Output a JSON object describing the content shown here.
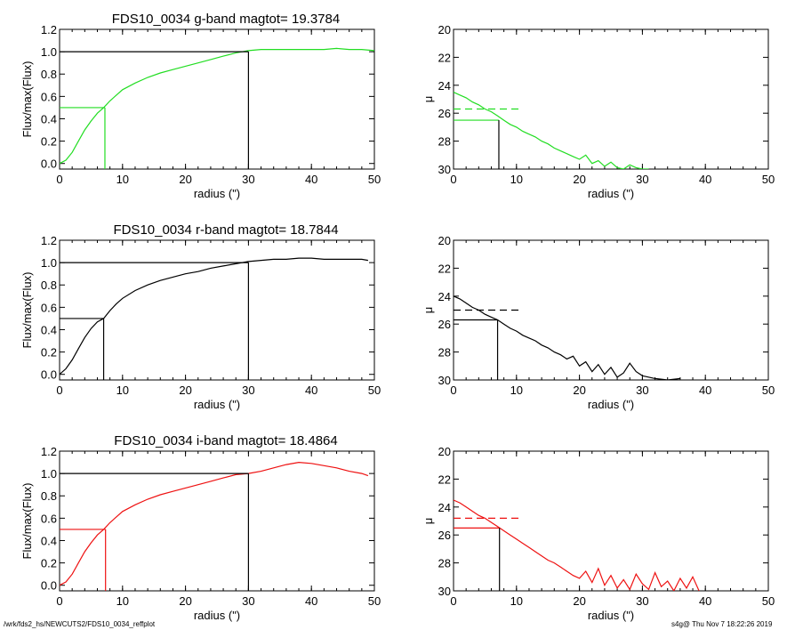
{
  "footer": {
    "left": "/wrk/fds2_hs/NEWCUTS2/FDS10_0034_reffplot",
    "right": "s4g@  Thu Nov  7 18:22:26 2019"
  },
  "colors": {
    "g": "#22dd22",
    "r": "#000000",
    "i": "#ee1111",
    "axis": "#000000"
  },
  "chart_data": [
    {
      "type": "line",
      "band": "g",
      "color": "#22dd22",
      "title": "FDS10_0034 g-band  magtot=      19.3784",
      "xlabel": "radius (\")",
      "ylabel": "Flux/max(Flux)",
      "xlim": [
        0,
        50
      ],
      "ylim": [
        -0.05,
        1.2
      ],
      "xticks": [
        "0",
        "10",
        "20",
        "30",
        "40",
        "50"
      ],
      "yticks": [
        "0.0",
        "0.2",
        "0.4",
        "0.6",
        "0.8",
        "1.0",
        "1.2"
      ],
      "x": [
        0,
        1,
        2,
        3,
        4,
        5,
        6,
        7,
        8,
        9,
        10,
        12,
        14,
        16,
        18,
        20,
        22,
        24,
        26,
        28,
        30,
        32,
        34,
        36,
        38,
        40,
        42,
        44,
        46,
        48,
        50
      ],
      "y": [
        0.0,
        0.03,
        0.1,
        0.2,
        0.3,
        0.38,
        0.45,
        0.5,
        0.56,
        0.61,
        0.66,
        0.72,
        0.77,
        0.81,
        0.84,
        0.87,
        0.9,
        0.93,
        0.96,
        0.99,
        1.01,
        1.02,
        1.02,
        1.02,
        1.02,
        1.02,
        1.02,
        1.03,
        1.02,
        1.02,
        1.01
      ],
      "half_light_radius": 7.2,
      "half_light_level": 0.5,
      "total_radius": 30,
      "total_level": 1.0
    },
    {
      "type": "line",
      "band": "g",
      "color": "#22dd22",
      "xlabel": "radius (\")",
      "ylabel": "μ",
      "xlim": [
        0,
        50
      ],
      "ylim": [
        30,
        20
      ],
      "inverted_y": true,
      "xticks": [
        "0",
        "10",
        "20",
        "30",
        "40",
        "50"
      ],
      "yticks": [
        "20",
        "22",
        "24",
        "26",
        "28",
        "30"
      ],
      "x": [
        0,
        1,
        2,
        3,
        4,
        5,
        6,
        7,
        8,
        9,
        10,
        11,
        12,
        13,
        14,
        15,
        16,
        17,
        18,
        19,
        20,
        21,
        22,
        23,
        24,
        25,
        26,
        27,
        28,
        29,
        30,
        31
      ],
      "y": [
        24.5,
        24.7,
        24.9,
        25.2,
        25.4,
        25.7,
        25.9,
        26.2,
        26.5,
        26.8,
        27.0,
        27.3,
        27.5,
        27.7,
        28.0,
        28.2,
        28.5,
        28.7,
        28.9,
        29.1,
        29.3,
        29.0,
        29.6,
        29.4,
        29.8,
        29.5,
        29.9,
        30.0,
        29.7,
        29.9,
        30.0,
        30.0
      ],
      "mu_mean_level": 25.7,
      "mu_eff_level": 26.5,
      "eff_radius": 7.2
    },
    {
      "type": "line",
      "band": "r",
      "color": "#000000",
      "title": "FDS10_0034 r-band  magtot=      18.7844",
      "xlabel": "radius (\")",
      "ylabel": "Flux/max(Flux)",
      "xlim": [
        0,
        50
      ],
      "ylim": [
        -0.05,
        1.2
      ],
      "xticks": [
        "0",
        "10",
        "20",
        "30",
        "40",
        "50"
      ],
      "yticks": [
        "0.0",
        "0.2",
        "0.4",
        "0.6",
        "0.8",
        "1.0",
        "1.2"
      ],
      "x": [
        0,
        1,
        2,
        3,
        4,
        5,
        6,
        7,
        8,
        9,
        10,
        12,
        14,
        16,
        18,
        20,
        22,
        24,
        26,
        28,
        30,
        32,
        34,
        36,
        38,
        40,
        42,
        44,
        46,
        48,
        49
      ],
      "y": [
        0.0,
        0.05,
        0.13,
        0.23,
        0.33,
        0.41,
        0.47,
        0.5,
        0.57,
        0.63,
        0.68,
        0.75,
        0.8,
        0.84,
        0.87,
        0.9,
        0.92,
        0.95,
        0.97,
        0.99,
        1.01,
        1.02,
        1.03,
        1.03,
        1.04,
        1.04,
        1.03,
        1.03,
        1.03,
        1.03,
        1.02
      ],
      "half_light_radius": 7.0,
      "half_light_level": 0.5,
      "total_radius": 30,
      "total_level": 1.0
    },
    {
      "type": "line",
      "band": "r",
      "color": "#000000",
      "xlabel": "radius (\")",
      "ylabel": "μ",
      "xlim": [
        0,
        50
      ],
      "ylim": [
        30,
        20
      ],
      "inverted_y": true,
      "xticks": [
        "0",
        "10",
        "20",
        "30",
        "40",
        "50"
      ],
      "yticks": [
        "20",
        "22",
        "24",
        "26",
        "28",
        "30"
      ],
      "x": [
        0,
        1,
        2,
        3,
        4,
        5,
        6,
        7,
        8,
        9,
        10,
        11,
        12,
        13,
        14,
        15,
        16,
        17,
        18,
        19,
        20,
        21,
        22,
        23,
        24,
        25,
        26,
        27,
        28,
        29,
        30,
        32,
        34,
        36
      ],
      "y": [
        24.0,
        24.2,
        24.5,
        24.8,
        25.0,
        25.3,
        25.5,
        25.7,
        26.0,
        26.3,
        26.5,
        26.8,
        27.0,
        27.2,
        27.5,
        27.7,
        28.0,
        28.2,
        28.5,
        28.3,
        29.0,
        28.7,
        29.4,
        28.9,
        29.6,
        29.1,
        29.8,
        29.5,
        28.8,
        29.4,
        29.7,
        29.9,
        30.0,
        29.9
      ],
      "mu_mean_level": 25.0,
      "mu_eff_level": 25.7,
      "eff_radius": 7.0
    },
    {
      "type": "line",
      "band": "i",
      "color": "#ee1111",
      "title": "FDS10_0034 i-band  magtot=      18.4864",
      "xlabel": "radius (\")",
      "ylabel": "Flux/max(Flux)",
      "xlim": [
        0,
        50
      ],
      "ylim": [
        -0.05,
        1.2
      ],
      "xticks": [
        "0",
        "10",
        "20",
        "30",
        "40",
        "50"
      ],
      "yticks": [
        "0.0",
        "0.2",
        "0.4",
        "0.6",
        "0.8",
        "1.0",
        "1.2"
      ],
      "x": [
        0,
        1,
        2,
        3,
        4,
        5,
        6,
        7,
        8,
        9,
        10,
        12,
        14,
        16,
        18,
        20,
        22,
        24,
        26,
        28,
        30,
        32,
        34,
        36,
        38,
        40,
        42,
        44,
        46,
        48,
        49
      ],
      "y": [
        0.0,
        0.03,
        0.1,
        0.2,
        0.3,
        0.38,
        0.45,
        0.5,
        0.56,
        0.61,
        0.66,
        0.72,
        0.77,
        0.81,
        0.84,
        0.87,
        0.9,
        0.93,
        0.96,
        0.99,
        1.0,
        1.02,
        1.05,
        1.08,
        1.1,
        1.09,
        1.07,
        1.05,
        1.02,
        1.0,
        0.98
      ],
      "half_light_radius": 7.3,
      "half_light_level": 0.5,
      "total_radius": 30,
      "total_level": 1.0
    },
    {
      "type": "line",
      "band": "i",
      "color": "#ee1111",
      "xlabel": "radius (\")",
      "ylabel": "μ",
      "xlim": [
        0,
        50
      ],
      "ylim": [
        30,
        20
      ],
      "inverted_y": true,
      "xticks": [
        "0",
        "10",
        "20",
        "30",
        "40",
        "50"
      ],
      "yticks": [
        "20",
        "22",
        "24",
        "26",
        "28",
        "30"
      ],
      "x": [
        0,
        1,
        2,
        3,
        4,
        5,
        6,
        7,
        8,
        9,
        10,
        11,
        12,
        13,
        14,
        15,
        16,
        17,
        18,
        19,
        20,
        21,
        22,
        23,
        24,
        25,
        26,
        27,
        28,
        29,
        30,
        31,
        32,
        33,
        34,
        35,
        36,
        37,
        38,
        39
      ],
      "y": [
        23.5,
        23.7,
        24.0,
        24.3,
        24.6,
        24.8,
        25.1,
        25.4,
        25.7,
        26.0,
        26.3,
        26.6,
        26.9,
        27.2,
        27.5,
        27.8,
        28.0,
        28.3,
        28.6,
        28.9,
        29.1,
        28.6,
        29.4,
        28.4,
        29.6,
        28.9,
        29.8,
        29.2,
        29.9,
        28.8,
        29.5,
        29.9,
        28.7,
        29.7,
        29.3,
        30.0,
        29.1,
        29.8,
        29.0,
        30.0
      ],
      "mu_mean_level": 24.8,
      "mu_eff_level": 25.5,
      "eff_radius": 7.3
    }
  ]
}
